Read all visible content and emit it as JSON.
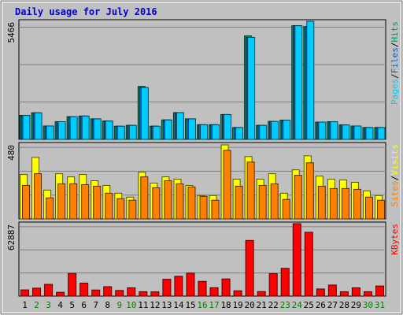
{
  "title": "Daily usage for July 2016",
  "colors": {
    "title": "#0000cc",
    "panel_bg": "#c0c0c0",
    "gridline": "#808080",
    "hits": "#009966",
    "files": "#0066cc",
    "pages": "#00ccff",
    "visits": "#ffff00",
    "sites": "#ff8000",
    "kbytes": "#ff0000",
    "weekday": "#000000",
    "weekend": "#008000"
  },
  "chart_data": {
    "type": "bar",
    "days": [
      "1",
      "2",
      "3",
      "4",
      "5",
      "6",
      "7",
      "8",
      "9",
      "10",
      "11",
      "12",
      "13",
      "14",
      "15",
      "16",
      "17",
      "18",
      "19",
      "20",
      "21",
      "22",
      "23",
      "24",
      "25",
      "26",
      "27",
      "28",
      "29",
      "30",
      "31"
    ],
    "weekend_days": [
      "2",
      "3",
      "9",
      "10",
      "16",
      "17",
      "23",
      "24",
      "30",
      "31"
    ],
    "panels": [
      {
        "id": "hits-files-pages",
        "max_label": "5466",
        "ylim": [
          0,
          5466
        ],
        "legend": [
          {
            "text": "Hits",
            "color": "#009966"
          },
          {
            "text": "Files",
            "color": "#0066cc"
          },
          {
            "text": "Pages",
            "color": "#00ccff"
          }
        ],
        "series": [
          {
            "name": "Hits",
            "color": "#009966",
            "values": [
              1110,
              1230,
              620,
              820,
              1050,
              1080,
              950,
              850,
              610,
              650,
              2450,
              610,
              900,
              1240,
              950,
              680,
              680,
              1150,
              550,
              4790,
              650,
              830,
              890,
              5260,
              5220,
              800,
              820,
              670,
              620,
              550,
              550
            ]
          },
          {
            "name": "Files",
            "color": "#0066cc",
            "values": [
              1110,
              1230,
              620,
              820,
              1050,
              1080,
              950,
              850,
              610,
              650,
              2400,
              610,
              900,
              1240,
              950,
              680,
              680,
              1150,
              550,
              4720,
              650,
              830,
              890,
              5260,
              5220,
              800,
              820,
              670,
              620,
              550,
              550
            ]
          },
          {
            "name": "Pages",
            "color": "#00ccff",
            "values": [
              1110,
              1230,
              620,
              820,
              1050,
              1080,
              950,
              850,
              610,
              650,
              2400,
              610,
              900,
              1240,
              950,
              680,
              680,
              1150,
              550,
              4720,
              650,
              830,
              890,
              5260,
              5466,
              800,
              820,
              670,
              620,
              550,
              550
            ]
          }
        ]
      },
      {
        "id": "visits-sites",
        "max_label": "480",
        "ylim": [
          0,
          480
        ],
        "legend": [
          {
            "text": "Visits",
            "color": "#ffff00"
          },
          {
            "text": "Sites",
            "color": "#ff8000"
          }
        ],
        "series": [
          {
            "name": "Visits",
            "color": "#ffff00",
            "values": [
              285,
              395,
              185,
              290,
              270,
              285,
              245,
              215,
              165,
              140,
              300,
              230,
              270,
              255,
              215,
              150,
              150,
              475,
              255,
              400,
              255,
              290,
              165,
              315,
              405,
              275,
              255,
              250,
              235,
              180,
              150
            ]
          },
          {
            "name": "Sites",
            "color": "#ff8000",
            "values": [
              215,
              290,
              135,
              225,
              225,
              220,
              210,
              165,
              130,
              120,
              270,
              200,
              245,
              225,
              205,
              145,
              120,
              440,
              210,
              365,
              215,
              225,
              125,
              280,
              360,
              210,
              195,
              195,
              190,
              140,
              120
            ]
          }
        ]
      },
      {
        "id": "kbytes",
        "max_label": "62887",
        "ylim": [
          0,
          62887
        ],
        "legend": [
          {
            "text": "KBytes",
            "color": "#ff0000"
          }
        ],
        "series": [
          {
            "name": "KBytes",
            "color": "#ff0000",
            "values": [
              5400,
              6900,
              10200,
              3300,
              19700,
              11300,
              5300,
              8200,
              4900,
              7200,
              3800,
              3700,
              14600,
              17200,
              20000,
              12800,
              7300,
              14900,
              4600,
              48300,
              3900,
              19500,
              24100,
              62887,
              55400,
              6200,
              9600,
              3800,
              7200,
              3800,
              8800
            ]
          }
        ]
      }
    ]
  }
}
